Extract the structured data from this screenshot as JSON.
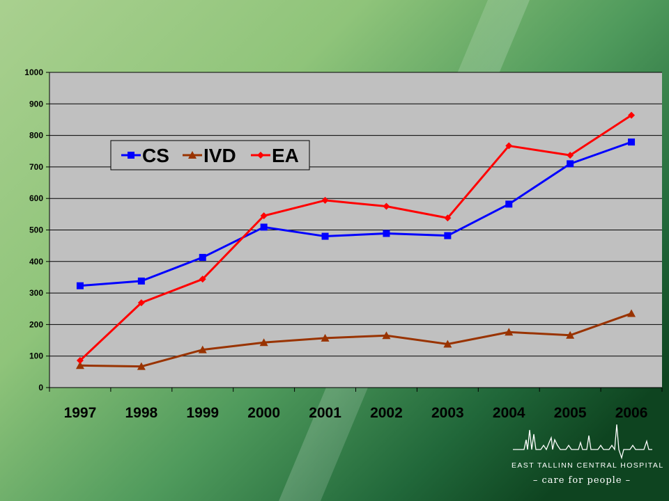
{
  "chart_data": {
    "type": "line",
    "categories": [
      "1997",
      "1998",
      "1999",
      "2000",
      "2001",
      "2002",
      "2003",
      "2004",
      "2005",
      "2006"
    ],
    "ylim": [
      0,
      1000
    ],
    "yticks": [
      "0",
      "100",
      "200",
      "300",
      "400",
      "500",
      "600",
      "700",
      "800",
      "900",
      "1000"
    ],
    "grid": "horizontal",
    "legend_position": "upper-left",
    "series": [
      {
        "name": "CS",
        "color": "#0000ff",
        "marker": "square",
        "values": [
          323,
          338,
          413,
          509,
          480,
          489,
          482,
          582,
          710,
          779
        ]
      },
      {
        "name": "IVD",
        "color": "#993300",
        "marker": "triangle",
        "values": [
          70,
          67,
          120,
          143,
          157,
          165,
          138,
          176,
          166,
          235
        ]
      },
      {
        "name": "EA",
        "color": "#ff0000",
        "marker": "diamond",
        "values": [
          86,
          269,
          344,
          545,
          594,
          575,
          538,
          767,
          737,
          864
        ]
      }
    ]
  },
  "logo": {
    "name": "EAST TALLINN CENTRAL HOSPITAL",
    "tagline": "– care for people –"
  }
}
